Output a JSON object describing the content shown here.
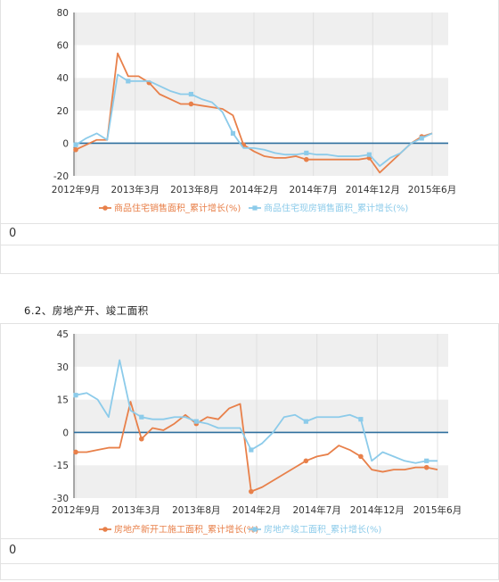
{
  "section_title": "6.2、房地产开、竣工面积",
  "footers": [
    "0",
    "0"
  ],
  "colors": {
    "orange": "#e8804a",
    "blue": "#8ccbea",
    "zero_line": "#2e6f9e",
    "band": "#efefef"
  },
  "chart_data": [
    {
      "type": "line",
      "title": "",
      "x_labels": [
        "2012年9月",
        "2013年3月",
        "2013年8月",
        "2014年2月",
        "2014年7月",
        "2014年12月",
        "2015年6月"
      ],
      "ylim": [
        -20,
        80
      ],
      "y_ticks": [
        -20,
        0,
        20,
        40,
        60,
        80
      ],
      "grid": "horizontal alternating bands",
      "legend_position": "bottom",
      "series": [
        {
          "name": "商品住宅销售面积_累计增长(%)",
          "color": "#e8804a",
          "values": [
            -4,
            -1,
            2,
            2,
            55,
            41,
            41,
            37,
            30,
            27,
            24,
            24,
            23,
            22,
            21,
            17,
            -1,
            -5,
            -8,
            -9,
            -9,
            -8,
            -10,
            -10,
            -10,
            -10,
            -10,
            -10,
            -9,
            -18,
            -12,
            -6,
            0,
            4,
            6
          ],
          "markers": [
            0,
            7,
            11,
            16,
            22,
            28,
            33
          ]
        },
        {
          "name": "商品住宅现房销售面积_累计增长(%)",
          "color": "#8ccbea",
          "values": [
            -1,
            3,
            6,
            2,
            42,
            38,
            38,
            38,
            35,
            32,
            30,
            30,
            27,
            25,
            19,
            6,
            -3,
            -3,
            -4,
            -6,
            -7,
            -7,
            -6,
            -7,
            -7,
            -8,
            -8,
            -8,
            -7,
            -14,
            -9,
            -6,
            0,
            3,
            6
          ],
          "markers": [
            0,
            5,
            11,
            15,
            22,
            28,
            33
          ]
        }
      ]
    },
    {
      "type": "line",
      "title": "",
      "x_labels": [
        "2012年9月",
        "2013年3月",
        "2013年8月",
        "2014年2月",
        "2014年7月",
        "2014年12月",
        "2015年6月"
      ],
      "ylim": [
        -30,
        45
      ],
      "y_ticks": [
        -30,
        -15,
        0,
        15,
        30,
        45
      ],
      "grid": "horizontal alternating bands",
      "legend_position": "bottom",
      "series": [
        {
          "name": "房地产新开工施工面积_累计增长(%)",
          "color": "#e8804a",
          "values": [
            -9,
            -9,
            -8,
            -7,
            -7,
            14,
            -3,
            2,
            1,
            4,
            8,
            4,
            7,
            6,
            11,
            13,
            -27,
            -25,
            -22,
            -19,
            -16,
            -13,
            -11,
            -10,
            -6,
            -8,
            -11,
            -17,
            -18,
            -17,
            -17,
            -16,
            -16,
            -17
          ],
          "markers": [
            0,
            6,
            11,
            16,
            21,
            26,
            32
          ]
        },
        {
          "name": "房地产竣工面积_累计增长(%)",
          "color": "#8ccbea",
          "values": [
            17,
            18,
            15,
            7,
            33,
            10,
            7,
            6,
            6,
            7,
            7,
            5,
            4,
            2,
            2,
            2,
            -8,
            -5,
            0,
            7,
            8,
            5,
            7,
            7,
            7,
            8,
            6,
            -13,
            -9,
            -11,
            -13,
            -14,
            -13,
            -13
          ],
          "markers": [
            0,
            6,
            11,
            16,
            21,
            26,
            32
          ]
        }
      ]
    }
  ]
}
